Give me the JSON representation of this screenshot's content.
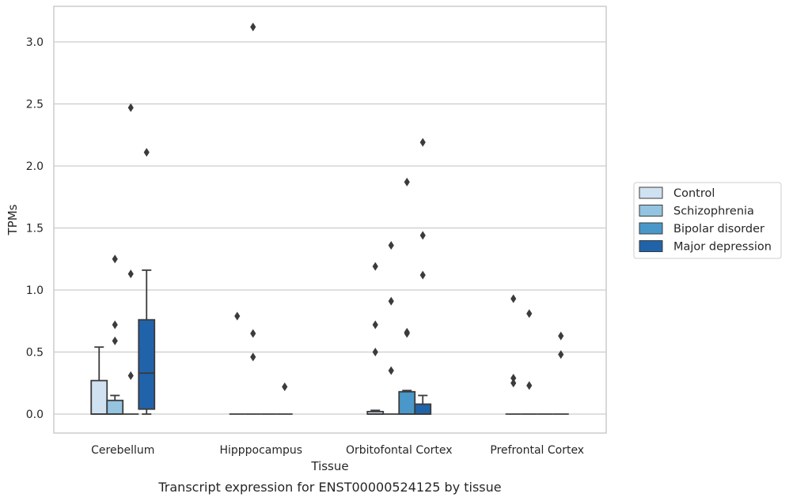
{
  "caption": "Transcript expression for ENST00000524125 by tissue",
  "chart_data": {
    "type": "box",
    "xlabel": "Tissue",
    "ylabel": "TPMs",
    "ylim": [
      -0.15,
      3.3
    ],
    "yticks": [
      0.0,
      0.5,
      1.0,
      1.5,
      2.0,
      2.5,
      3.0
    ],
    "ytick_labels": [
      "0.0",
      "0.5",
      "1.0",
      "1.5",
      "2.0",
      "2.5",
      "3.0"
    ],
    "grid": "horizontal",
    "legend_placement": "right",
    "categories": [
      "Cerebellum",
      "Hipppocampus",
      "Orbitofontal Cortex",
      "Prefrontal Cortex"
    ],
    "series": [
      {
        "name": "Control",
        "color": "#d0e1f2",
        "boxes": [
          {
            "whislo": 0,
            "q1": 0,
            "med": 0,
            "q3": 0.27,
            "whishi": 0.54,
            "fliers": []
          },
          {
            "whislo": 0,
            "q1": 0,
            "med": 0,
            "q3": 0,
            "whishi": 0,
            "fliers": [
              0.79
            ]
          },
          {
            "whislo": 0,
            "q1": 0,
            "med": 0,
            "q3": 0.02,
            "whishi": 0.03,
            "fliers": [
              1.19,
              0.72,
              0.5
            ]
          },
          {
            "whislo": 0,
            "q1": 0,
            "med": 0,
            "q3": 0,
            "whishi": 0,
            "fliers": [
              0.93,
              0.29,
              0.25
            ]
          }
        ]
      },
      {
        "name": "Schizophrenia",
        "color": "#94c4df",
        "boxes": [
          {
            "whislo": 0,
            "q1": 0,
            "med": 0,
            "q3": 0.11,
            "whishi": 0.15,
            "fliers": [
              1.25,
              0.72,
              0.59
            ]
          },
          {
            "whislo": 0,
            "q1": 0,
            "med": 0,
            "q3": 0,
            "whishi": 0,
            "fliers": [
              3.12,
              0.65,
              0.46
            ]
          },
          {
            "whislo": 0,
            "q1": 0,
            "med": 0,
            "q3": 0,
            "whishi": 0,
            "fliers": [
              1.36,
              0.91,
              0.35
            ]
          },
          {
            "whislo": 0,
            "q1": 0,
            "med": 0,
            "q3": 0,
            "whishi": 0,
            "fliers": [
              0.81,
              0.23
            ]
          }
        ]
      },
      {
        "name": "Bipolar disorder",
        "color": "#4a98c9",
        "boxes": [
          {
            "whislo": 0,
            "q1": 0,
            "med": 0,
            "q3": 0,
            "whishi": 0,
            "fliers": [
              2.47,
              1.13,
              0.31
            ]
          },
          {
            "whislo": 0,
            "q1": 0,
            "med": 0,
            "q3": 0,
            "whishi": 0,
            "fliers": []
          },
          {
            "whislo": 0,
            "q1": 0,
            "med": 0,
            "q3": 0.18,
            "whishi": 0.19,
            "fliers": [
              1.87,
              0.66,
              0.65
            ]
          },
          {
            "whislo": 0,
            "q1": 0,
            "med": 0,
            "q3": 0,
            "whishi": 0,
            "fliers": []
          }
        ]
      },
      {
        "name": "Major depression",
        "color": "#2163aa",
        "boxes": [
          {
            "whislo": 0,
            "q1": 0.04,
            "med": 0.33,
            "q3": 0.76,
            "whishi": 1.16,
            "fliers": [
              2.11
            ]
          },
          {
            "whislo": 0,
            "q1": 0,
            "med": 0,
            "q3": 0,
            "whishi": 0,
            "fliers": [
              0.22
            ]
          },
          {
            "whislo": 0,
            "q1": 0,
            "med": 0,
            "q3": 0.08,
            "whishi": 0.15,
            "fliers": [
              2.19,
              1.44,
              1.12
            ]
          },
          {
            "whislo": 0,
            "q1": 0,
            "med": 0,
            "q3": 0,
            "whishi": 0,
            "fliers": [
              0.63,
              0.48
            ]
          }
        ]
      }
    ]
  }
}
